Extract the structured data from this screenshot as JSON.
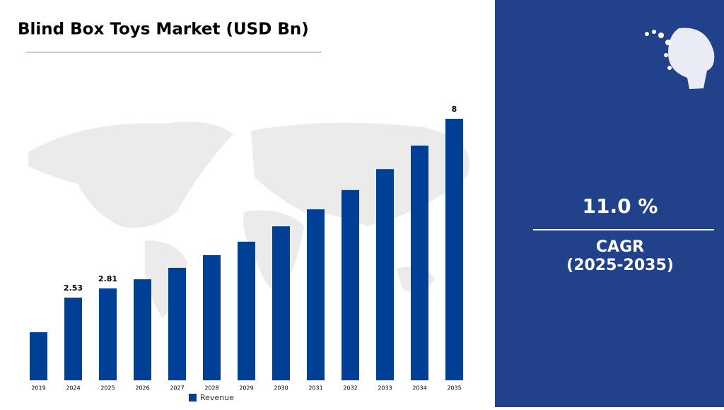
{
  "chart_data": {
    "type": "bar",
    "title": "Blind Box Toys Market (USD Bn)",
    "categories": [
      "2019",
      "2024",
      "2025",
      "2026",
      "2027",
      "2028",
      "2029",
      "2030",
      "2031",
      "2032",
      "2033",
      "2034",
      "2035"
    ],
    "series": [
      {
        "name": "Revenue",
        "color": "#003f96",
        "values": [
          1.47,
          2.53,
          2.81,
          3.09,
          3.44,
          3.83,
          4.24,
          4.71,
          5.23,
          5.82,
          6.46,
          7.18,
          8
        ],
        "value_labels": [
          null,
          "2.53",
          "2.81",
          null,
          null,
          null,
          null,
          null,
          null,
          null,
          null,
          null,
          "8"
        ]
      }
    ],
    "ylim": [
      0,
      8
    ],
    "grid": false,
    "legend": "bottom"
  },
  "side_panel": {
    "cagr_value": "11.0 %",
    "cagr_label": "CAGR",
    "period": "(2025-2035)"
  }
}
